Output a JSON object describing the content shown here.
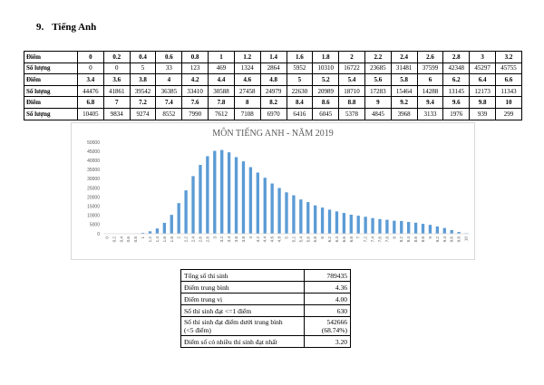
{
  "section": {
    "number": "9.",
    "title": "Tiếng Anh"
  },
  "score_table": {
    "label_score": "Điểm",
    "label_count": "Số lượng",
    "blocks": [
      {
        "scores": [
          "0",
          "0.2",
          "0.4",
          "0.6",
          "0.8",
          "1",
          "1.2",
          "1.4",
          "1.6",
          "1.8",
          "2",
          "2.2",
          "2.4",
          "2.6",
          "2.8",
          "3",
          "3.2"
        ],
        "counts": [
          "0",
          "0",
          "5",
          "33",
          "123",
          "469",
          "1324",
          "2864",
          "5952",
          "10310",
          "16722",
          "23685",
          "31481",
          "37599",
          "42348",
          "45297",
          "45755"
        ]
      },
      {
        "scores": [
          "3.4",
          "3.6",
          "3.8",
          "4",
          "4.2",
          "4.4",
          "4.6",
          "4.8",
          "5",
          "5.2",
          "5.4",
          "5.6",
          "5.8",
          "6",
          "6.2",
          "6.4",
          "6.6"
        ],
        "counts": [
          "44476",
          "41861",
          "39542",
          "36385",
          "33410",
          "30588",
          "27458",
          "24979",
          "22630",
          "20989",
          "18710",
          "17283",
          "15464",
          "14288",
          "13145",
          "12173",
          "11343"
        ]
      },
      {
        "scores": [
          "6.8",
          "7",
          "7.2",
          "7.4",
          "7.6",
          "7.8",
          "8",
          "8.2",
          "8.4",
          "8.6",
          "8.8",
          "9",
          "9.2",
          "9.4",
          "9.6",
          "9.8",
          "10"
        ],
        "counts": [
          "10405",
          "9834",
          "9274",
          "8552",
          "7990",
          "7612",
          "7108",
          "6970",
          "6416",
          "6045",
          "5378",
          "4845",
          "3968",
          "3133",
          "1976",
          "939",
          "299"
        ]
      }
    ]
  },
  "chart_data": {
    "type": "bar",
    "title": "MÔN TIẾNG ANH - NĂM 2019",
    "xlabel": "",
    "ylabel": "",
    "ylim": [
      0,
      50000
    ],
    "yticks": [
      0,
      5000,
      10000,
      15000,
      20000,
      25000,
      30000,
      35000,
      40000,
      45000,
      50000
    ],
    "grid": false,
    "bar_color": "#5b9bd5",
    "categories": [
      "0",
      "0.2",
      "0.4",
      "0.6",
      "0.8",
      "1",
      "1.2",
      "1.4",
      "1.6",
      "1.8",
      "2",
      "2.2",
      "2.4",
      "2.6",
      "2.8",
      "3",
      "3.2",
      "3.4",
      "3.6",
      "3.8",
      "4",
      "4.2",
      "4.4",
      "4.6",
      "4.8",
      "5",
      "5.2",
      "5.4",
      "5.6",
      "5.8",
      "6",
      "6.2",
      "6.4",
      "6.6",
      "6.8",
      "7",
      "7.2",
      "7.4",
      "7.6",
      "7.8",
      "8",
      "8.2",
      "8.4",
      "8.6",
      "8.8",
      "9",
      "9.2",
      "9.4",
      "9.6",
      "9.8",
      "10"
    ],
    "values": [
      0,
      0,
      5,
      33,
      123,
      469,
      1324,
      2864,
      5952,
      10310,
      16722,
      23685,
      31481,
      37599,
      42348,
      45297,
      45755,
      44476,
      41861,
      39542,
      36385,
      33410,
      30588,
      27458,
      24979,
      22630,
      20989,
      18710,
      17283,
      15464,
      14288,
      13145,
      12173,
      11343,
      10405,
      9834,
      9274,
      8552,
      7990,
      7612,
      7108,
      6970,
      6416,
      6045,
      5378,
      4845,
      3968,
      3133,
      1976,
      939,
      299
    ]
  },
  "stats": [
    {
      "label": "Tổng số thí sinh",
      "value": "789435"
    },
    {
      "label": "Điểm trung bình",
      "value": "4.36"
    },
    {
      "label": "Điểm trung vị",
      "value": "4.00"
    },
    {
      "label": "Số thí sinh đạt <=1 điểm",
      "value": "630"
    },
    {
      "label": "Số thí sinh đạt điểm dưới trung bình",
      "label2": "(<5 điểm)",
      "value": "542666",
      "value2": "(68.74%)"
    },
    {
      "label": "Điểm số có nhiều thí sinh đạt nhất",
      "value": "3.20"
    }
  ]
}
